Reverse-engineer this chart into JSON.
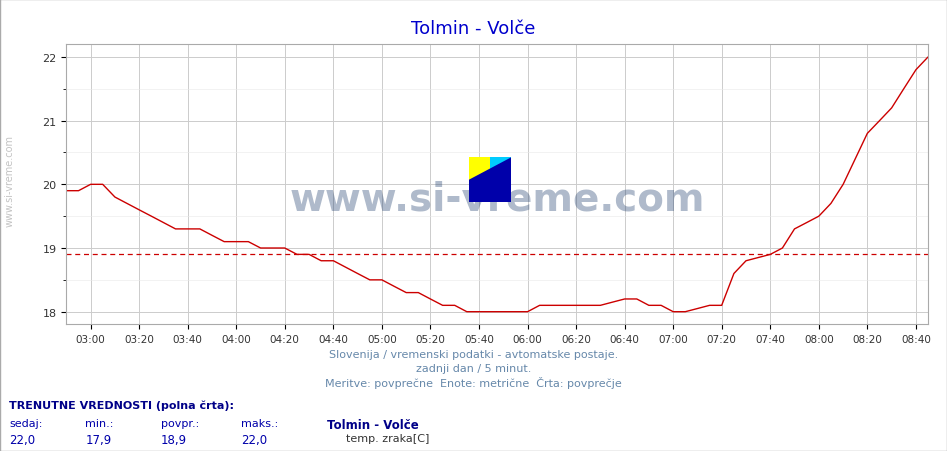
{
  "title": "Tolmin - Volče",
  "title_color": "#0000cc",
  "bg_color": "#ffffff",
  "plot_bg_color": "#ffffff",
  "grid_color_major": "#cccccc",
  "grid_color_minor": "#e8e8e8",
  "line_color": "#cc0000",
  "avg_line_color": "#cc0000",
  "avg_line_value": 18.9,
  "ylim": [
    17.8,
    22.2
  ],
  "yticks": [
    18,
    19,
    20,
    21,
    22
  ],
  "xlabel": "",
  "ylabel": "",
  "xstart_hour": 2.833,
  "xend_hour": 8.75,
  "xtick_labels": [
    "03:00",
    "03:20",
    "03:40",
    "04:00",
    "04:20",
    "04:40",
    "05:00",
    "05:20",
    "05:40",
    "06:00",
    "06:20",
    "06:40",
    "07:00",
    "07:20",
    "07:40",
    "08:00",
    "08:20",
    "08:40"
  ],
  "xtick_positions": [
    3.0,
    3.333,
    3.667,
    4.0,
    4.333,
    4.667,
    5.0,
    5.333,
    5.667,
    6.0,
    6.333,
    6.667,
    7.0,
    7.333,
    7.667,
    8.0,
    8.333,
    8.667
  ],
  "footer_line1": "Slovenija / vremenski podatki - avtomatske postaje.",
  "footer_line2": "zadnji dan / 5 minut.",
  "footer_line3": "Meritve: povprečne  Enote: metrične  Črta: povprečje",
  "footer_color": "#6688aa",
  "label_left": "TRENUTNE VREDNOSTI (polna črta):",
  "label_sedaj": "sedaj:",
  "label_min": "min.:",
  "label_povpr": "povpr.:",
  "label_maks": "maks.:",
  "val_sedaj": "22,0",
  "val_min": "17,9",
  "val_povpr": "18,9",
  "val_maks": "22,0",
  "station_name": "Tolmin - Volče",
  "series_label": "temp. zraka[C]",
  "left_label_color": "#000088",
  "values_color": "#0000aa",
  "station_color": "#000088",
  "series_label_color": "#333333",
  "watermark_text": "www.si-vreme.com",
  "watermark_color": "#1a3a6a",
  "watermark_alpha": 0.35,
  "logo_colors": [
    "#ffff00",
    "#00ccff",
    "#0000aa"
  ],
  "data_x": [
    2.833,
    2.917,
    3.0,
    3.083,
    3.167,
    3.25,
    3.333,
    3.417,
    3.5,
    3.583,
    3.667,
    3.75,
    3.833,
    3.917,
    4.0,
    4.083,
    4.167,
    4.25,
    4.333,
    4.417,
    4.5,
    4.583,
    4.667,
    4.75,
    4.833,
    4.917,
    5.0,
    5.083,
    5.167,
    5.25,
    5.333,
    5.417,
    5.5,
    5.583,
    5.667,
    5.75,
    5.833,
    5.917,
    6.0,
    6.083,
    6.167,
    6.25,
    6.333,
    6.417,
    6.5,
    6.583,
    6.667,
    6.75,
    6.833,
    6.917,
    7.0,
    7.083,
    7.167,
    7.25,
    7.333,
    7.417,
    7.5,
    7.583,
    7.667,
    7.75,
    7.833,
    7.917,
    8.0,
    8.083,
    8.167,
    8.25,
    8.333,
    8.417,
    8.5,
    8.583,
    8.667,
    8.75
  ],
  "data_y": [
    19.9,
    19.9,
    20.0,
    20.0,
    19.8,
    19.7,
    19.6,
    19.5,
    19.4,
    19.3,
    19.3,
    19.3,
    19.2,
    19.1,
    19.1,
    19.1,
    19.0,
    19.0,
    19.0,
    18.9,
    18.9,
    18.8,
    18.8,
    18.7,
    18.6,
    18.5,
    18.5,
    18.4,
    18.3,
    18.3,
    18.2,
    18.1,
    18.1,
    18.0,
    18.0,
    18.0,
    18.0,
    18.0,
    18.0,
    18.1,
    18.1,
    18.1,
    18.1,
    18.1,
    18.1,
    18.15,
    18.2,
    18.2,
    18.1,
    18.1,
    18.0,
    18.0,
    18.05,
    18.1,
    18.1,
    18.6,
    18.8,
    18.85,
    18.9,
    19.0,
    19.3,
    19.4,
    19.5,
    19.7,
    20.0,
    20.4,
    20.8,
    21.0,
    21.2,
    21.5,
    21.8,
    22.0
  ]
}
